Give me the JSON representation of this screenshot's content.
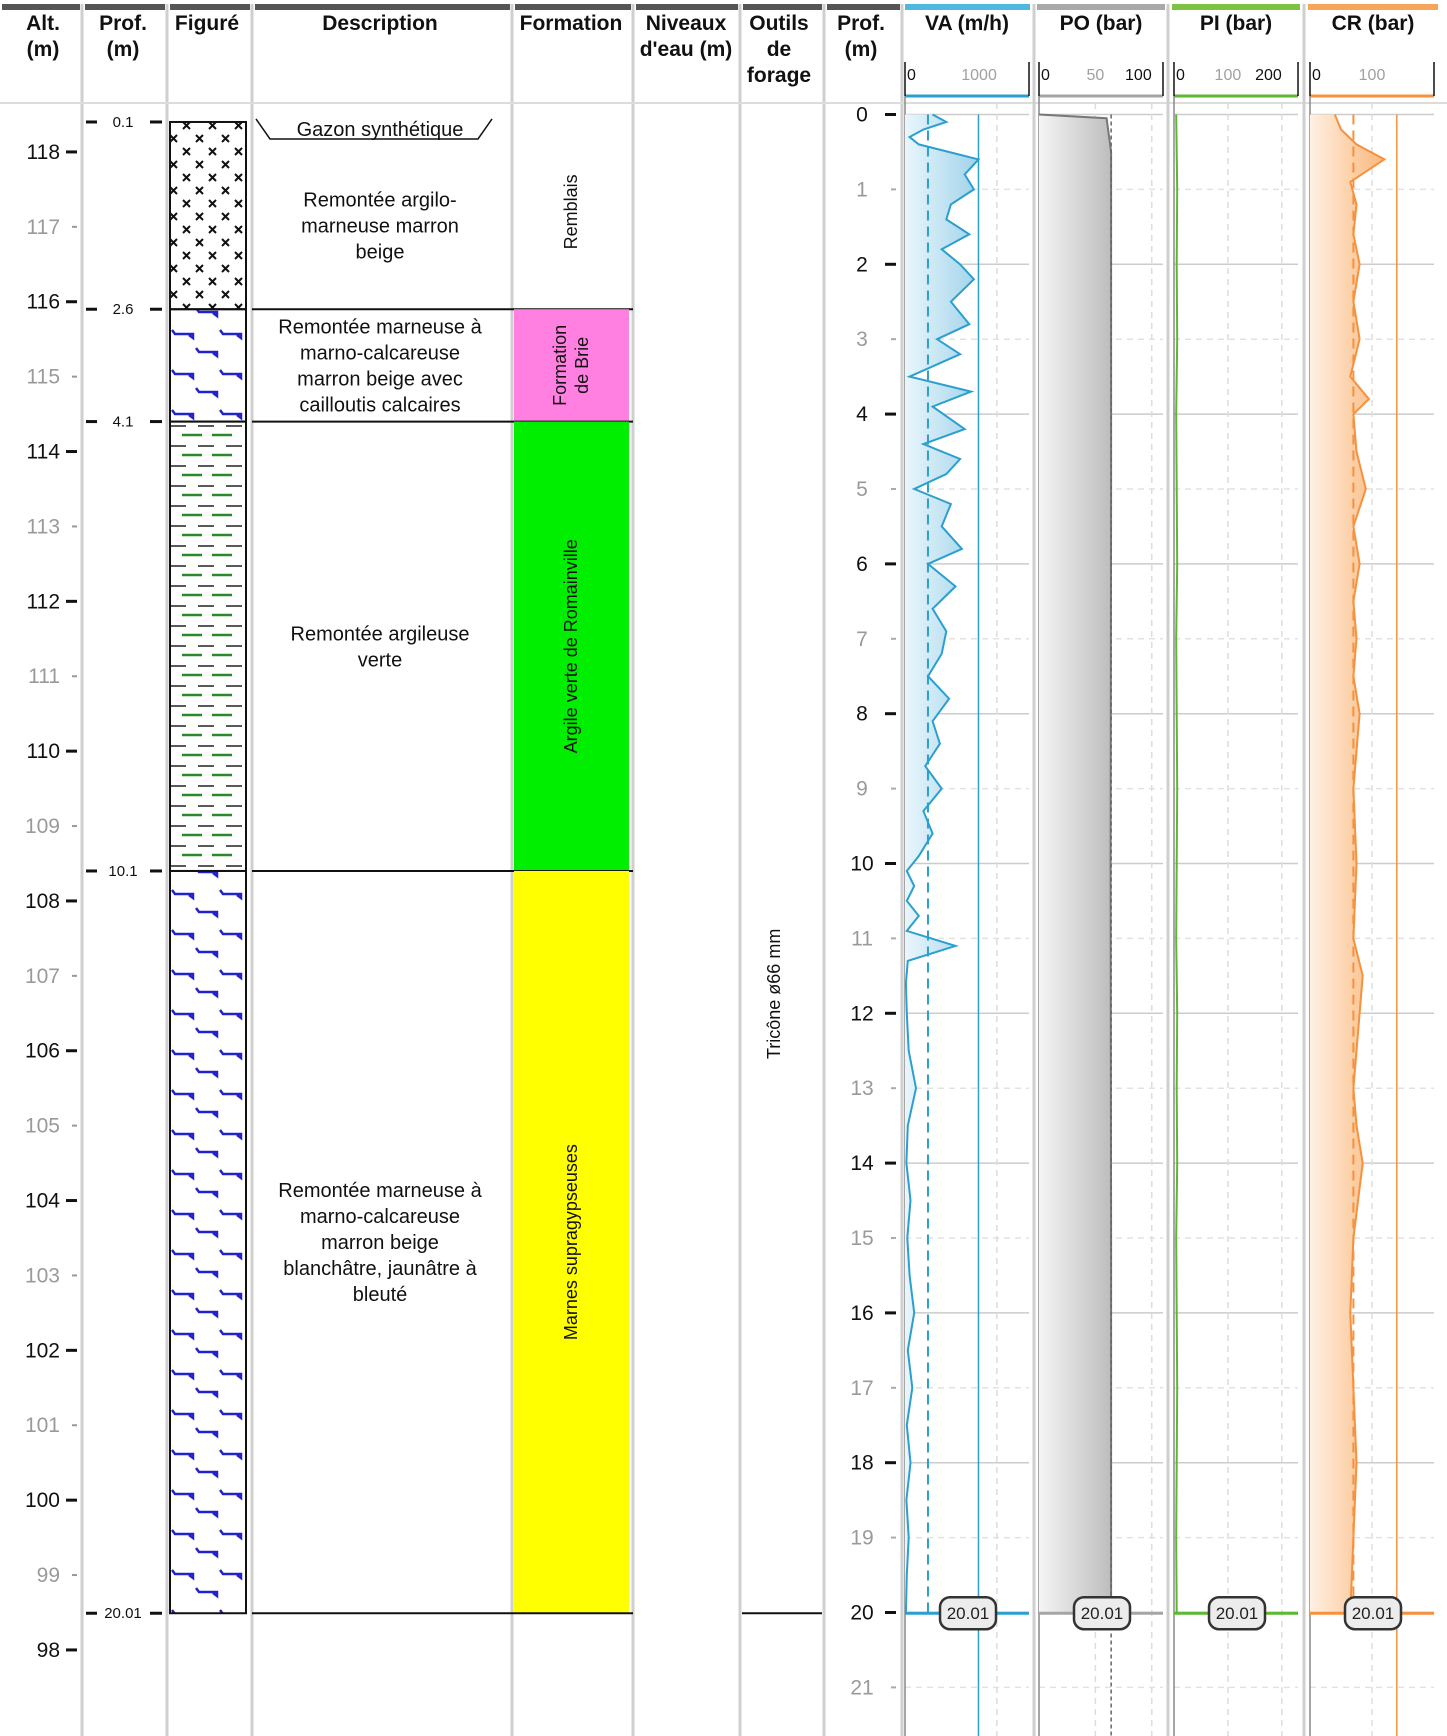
{
  "headers": {
    "alt": [
      "Alt.",
      "(m)"
    ],
    "prof": [
      "Prof.",
      "(m)"
    ],
    "figure": [
      "Figuré"
    ],
    "description": [
      "Description"
    ],
    "formation": [
      "Formation"
    ],
    "niveaux": [
      "Niveaux",
      "d'eau (m)"
    ],
    "outils": [
      "Outils",
      "de",
      "forage"
    ],
    "prof2": [
      "Prof.",
      "(m)"
    ],
    "va": "VA (m/h)",
    "po": "PO (bar)",
    "pi": "PI (bar)",
    "cr": "CR (bar)"
  },
  "depth_scale": {
    "min": -0.1,
    "max": 21.6
  },
  "altitude_ticks": [
    118,
    117,
    116,
    115,
    114,
    113,
    112,
    111,
    110,
    109,
    108,
    107,
    106,
    105,
    104,
    103,
    102,
    101,
    100,
    99,
    98
  ],
  "altitude_at_zero_depth": 118.5,
  "depth_ticks": [
    0,
    1,
    2,
    3,
    4,
    5,
    6,
    7,
    8,
    9,
    10,
    11,
    12,
    13,
    14,
    15,
    16,
    17,
    18,
    19,
    20,
    21
  ],
  "layer_boundaries": [
    "0.1",
    "2.6",
    "4.1",
    "10.1",
    "20.01"
  ],
  "layers": [
    {
      "top": 0.1,
      "bottom": 2.6,
      "pattern": "remblais",
      "description": [
        "Remontée argilo-",
        "marneuse marron",
        "beige"
      ]
    },
    {
      "top": 2.6,
      "bottom": 4.1,
      "pattern": "marne",
      "description": [
        "Remontée marneuse à",
        "marno-calcareuse",
        "marron beige avec",
        "cailloutis calcaires"
      ]
    },
    {
      "top": 4.1,
      "bottom": 10.1,
      "pattern": "argile",
      "description": [
        "Remontée argileuse",
        "verte"
      ]
    },
    {
      "top": 10.1,
      "bottom": 20.01,
      "pattern": "marne",
      "description": [
        "Remontée marneuse à",
        "marno-calcareuse",
        "marron beige",
        "blanchâtre, jaunâtre à",
        "bleuté"
      ]
    }
  ],
  "surface_label": "Gazon synthétique",
  "formations": [
    {
      "top": 0.0,
      "bottom": 2.6,
      "color": "#ffffff",
      "lines": [
        "Remblais"
      ]
    },
    {
      "top": 2.6,
      "bottom": 4.1,
      "color": "#ff80e0",
      "lines": [
        "Formation",
        "de Brie"
      ]
    },
    {
      "top": 4.1,
      "bottom": 10.1,
      "color": "#00ee00",
      "lines": [
        "Argile verte de Romainville"
      ]
    },
    {
      "top": 10.1,
      "bottom": 20.01,
      "color": "#ffff00",
      "lines": [
        "Marnes supragypseuses"
      ]
    }
  ],
  "tool": {
    "label": "Tricône ø66 mm",
    "top": 0.0,
    "bottom": 20.01
  },
  "end_depth_label": "20.01",
  "chart_data": [
    {
      "type": "line",
      "name": "VA (m/h)",
      "color": "#2b9fd0",
      "xlim": [
        0,
        1350
      ],
      "ticks": [
        "0",
        "1000"
      ],
      "mean": 250,
      "reference": 800,
      "x": [
        0,
        0.1,
        0.2,
        0.3,
        0.4,
        0.6,
        0.8,
        1.0,
        1.2,
        1.4,
        1.6,
        1.8,
        2.0,
        2.2,
        2.5,
        2.8,
        3.0,
        3.2,
        3.5,
        3.7,
        3.9,
        4.2,
        4.4,
        4.6,
        4.8,
        5.0,
        5.2,
        5.5,
        5.8,
        6.0,
        6.3,
        6.6,
        6.9,
        7.2,
        7.5,
        7.8,
        8.1,
        8.4,
        8.7,
        9.0,
        9.3,
        9.6,
        9.9,
        10.1,
        10.3,
        10.5,
        10.7,
        10.9,
        11.1,
        11.3,
        11.6,
        12.0,
        12.5,
        13.0,
        13.5,
        14.0,
        14.5,
        15.0,
        15.5,
        16.0,
        16.5,
        17.0,
        17.5,
        18.0,
        18.5,
        19.0,
        19.5,
        20.01
      ],
      "y": [
        300,
        450,
        200,
        50,
        150,
        800,
        650,
        750,
        500,
        450,
        700,
        400,
        600,
        750,
        500,
        700,
        350,
        600,
        50,
        720,
        300,
        650,
        200,
        600,
        450,
        100,
        500,
        400,
        620,
        250,
        550,
        300,
        450,
        400,
        250,
        480,
        300,
        380,
        220,
        400,
        200,
        300,
        150,
        20,
        100,
        20,
        150,
        20,
        550,
        30,
        10,
        20,
        40,
        120,
        30,
        15,
        60,
        25,
        50,
        100,
        30,
        80,
        20,
        60,
        15,
        40,
        20,
        10
      ]
    },
    {
      "type": "line",
      "name": "PO (bar)",
      "color": "#a5a5a5",
      "xlim": [
        0,
        110
      ],
      "ticks": [
        "0",
        "50",
        "100"
      ],
      "x": [
        0,
        0.05,
        0.5,
        2,
        5,
        10,
        15,
        20.01
      ],
      "y": [
        0,
        60,
        64,
        64,
        64,
        63.5,
        64,
        64
      ]
    },
    {
      "type": "line",
      "name": "PI (bar)",
      "color": "#5bb830",
      "xlim": [
        0,
        230
      ],
      "ticks": [
        "0",
        "100",
        "200"
      ],
      "x": [
        0,
        1,
        2,
        3,
        4,
        5,
        6,
        7,
        8,
        9,
        10,
        11,
        12,
        13,
        14,
        15,
        16,
        17,
        18,
        19,
        20.01
      ],
      "y": [
        4,
        6,
        5,
        6,
        4,
        5,
        6,
        4,
        5,
        6,
        5,
        4,
        6,
        5,
        6,
        4,
        5,
        6,
        5,
        4,
        5
      ]
    },
    {
      "type": "line",
      "name": "CR (bar)",
      "color": "#f7913d",
      "xlim": [
        0,
        200
      ],
      "ticks": [
        "0",
        "100"
      ],
      "mean": 70,
      "reference": 140,
      "x": [
        0,
        0.2,
        0.4,
        0.6,
        0.9,
        1.2,
        1.6,
        2.0,
        2.5,
        3.0,
        3.5,
        3.8,
        4.0,
        4.5,
        5.0,
        5.5,
        6.0,
        6.5,
        7.0,
        7.5,
        8.0,
        9.0,
        10.0,
        11.0,
        11.5,
        12.0,
        13.0,
        13.5,
        14.0,
        15.0,
        16.0,
        17.0,
        18.0,
        19.0,
        20.01
      ],
      "y": [
        40,
        50,
        75,
        120,
        65,
        75,
        70,
        80,
        70,
        80,
        65,
        95,
        70,
        75,
        90,
        70,
        80,
        70,
        75,
        70,
        80,
        70,
        75,
        70,
        85,
        80,
        70,
        75,
        85,
        70,
        65,
        70,
        75,
        70,
        65
      ]
    }
  ]
}
